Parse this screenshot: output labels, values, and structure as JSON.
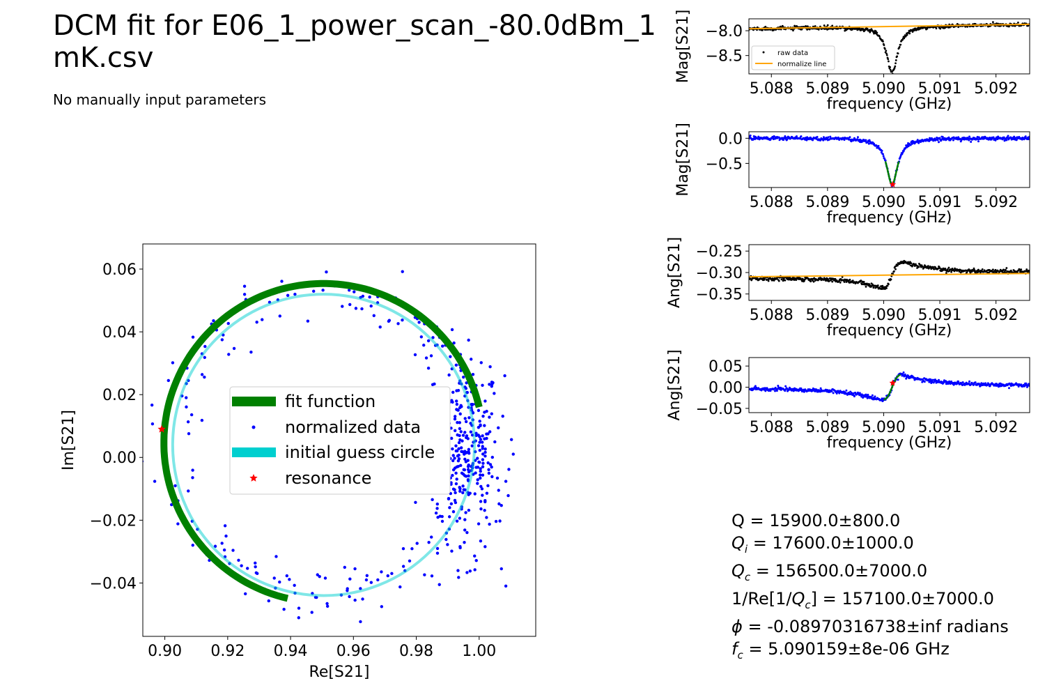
{
  "title": "DCM fit for E06_1_power_scan_-80.0dBm_1\nmK.csv",
  "subtitle": "No manually input parameters",
  "params": [
    "Q = 15900.0±800.0",
    "Qi = 17600.0±1000.0",
    "Qc = 156500.0±7000.0",
    "1/Re[1/Qc] = 157100.0±7000.0",
    "ϕ = -0.08970316738±inf radians",
    "fc = 5.090159±8e-06 GHz"
  ],
  "colors": {
    "fit": "#008000",
    "normalized": "#0000ff",
    "guess": "#00cfcf",
    "resonance": "#ff0000",
    "raw": "#000000",
    "normalize_line": "#ffa500"
  },
  "chart_data": [
    {
      "type": "scatter",
      "name": "circle",
      "xlabel": "Re[S21]",
      "ylabel": "Im[S21]",
      "xlim": [
        0.893,
        1.018
      ],
      "ylim": [
        -0.057,
        0.068
      ],
      "xticks": [
        "0.90",
        "0.92",
        "0.94",
        "0.96",
        "0.98",
        "1.00"
      ],
      "yticks": [
        "−0.04",
        "−0.02",
        "0.00",
        "0.02",
        "0.04",
        "0.06"
      ],
      "legend": {
        "placement": "center",
        "entries": [
          "fit function",
          "normalized data",
          "initial guess circle",
          "resonance"
        ]
      },
      "fit_circle": {
        "center": [
          0.9505,
          0.0046
        ],
        "radius": 0.0508,
        "arc_start_deg": 13,
        "arc_end_deg": 257
      },
      "guess_circle": {
        "center": [
          0.9505,
          0.004
        ],
        "radius": 0.048
      },
      "resonance": [
        0.899,
        0.009
      ]
    },
    {
      "type": "scatter",
      "name": "mag_raw",
      "xlabel": "frequency (GHz)",
      "ylabel": "Mag[S21]",
      "xlim": [
        5.0876,
        5.0926
      ],
      "ylim": [
        -8.87,
        -7.76
      ],
      "xticks": [
        "5.088",
        "5.089",
        "5.090",
        "5.091",
        "5.092"
      ],
      "yticks": [
        "−8.0",
        "−8.5"
      ],
      "legend": {
        "placement": "lower left",
        "entries": [
          "raw data",
          "normalize line"
        ]
      },
      "baseline": {
        "x": [
          5.0876,
          5.0926
        ],
        "y": [
          -7.96,
          -7.87
        ]
      },
      "dip": {
        "center": 5.09015,
        "depth": 0.92,
        "width": 0.00012
      }
    },
    {
      "type": "scatter",
      "name": "mag_norm",
      "xlabel": "frequency (GHz)",
      "ylabel": "Mag[S21]",
      "xlim": [
        5.0876,
        5.0926
      ],
      "ylim": [
        -0.98,
        0.13
      ],
      "xticks": [
        "5.088",
        "5.089",
        "5.090",
        "5.091",
        "5.092"
      ],
      "yticks": [
        "0.0",
        "−0.5"
      ],
      "dip": {
        "center": 5.09015,
        "depth": 0.92,
        "width": 0.00012
      },
      "resonance": [
        5.09016,
        -0.92
      ]
    },
    {
      "type": "scatter",
      "name": "ang_raw",
      "xlabel": "frequency (GHz)",
      "ylabel": "Ang[S21]",
      "xlim": [
        5.0876,
        5.0926
      ],
      "ylim": [
        -0.365,
        -0.235
      ],
      "xticks": [
        "5.088",
        "5.089",
        "5.090",
        "5.091",
        "5.092"
      ],
      "yticks": [
        "−0.25",
        "−0.30",
        "−0.35"
      ],
      "baseline": {
        "x": [
          5.0876,
          5.0926
        ],
        "y": [
          -0.31,
          -0.302
        ]
      },
      "swing": 0.06
    },
    {
      "type": "scatter",
      "name": "ang_norm",
      "xlabel": "frequency (GHz)",
      "ylabel": "Ang[S21]",
      "xlim": [
        5.0876,
        5.0926
      ],
      "ylim": [
        -0.06,
        0.07
      ],
      "xticks": [
        "5.088",
        "5.089",
        "5.090",
        "5.091",
        "5.092"
      ],
      "yticks": [
        "0.05",
        "0.00",
        "−0.05"
      ],
      "swing": 0.06,
      "resonance": [
        5.09016,
        0.01
      ]
    }
  ]
}
